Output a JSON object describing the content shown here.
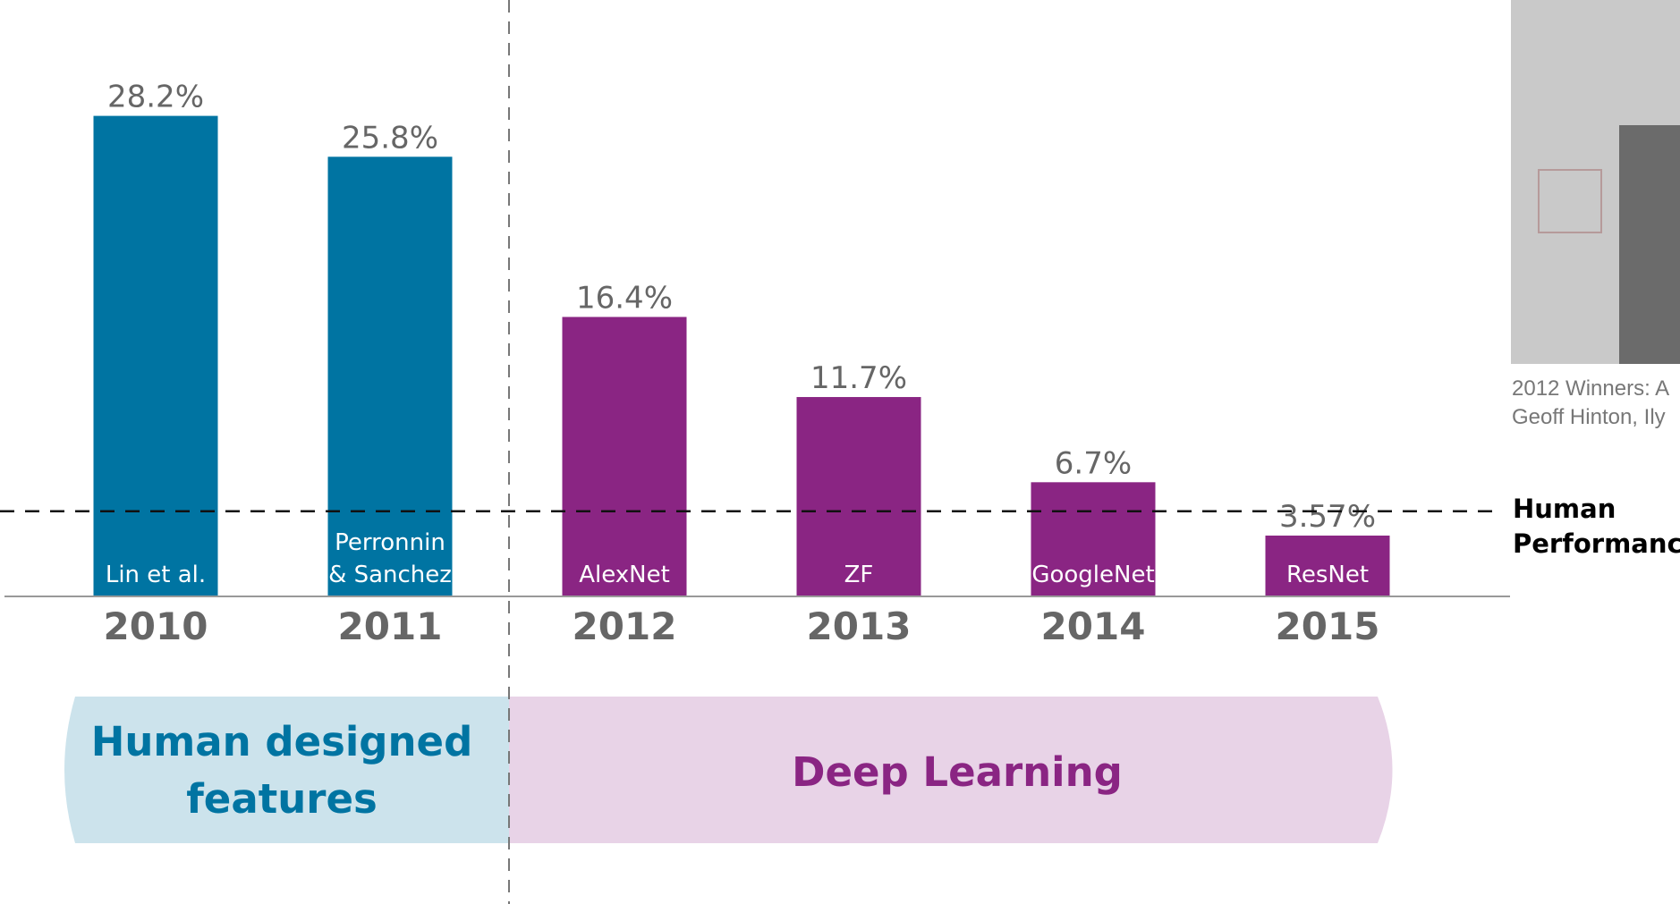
{
  "chart_data": {
    "type": "bar",
    "categories": [
      "2010",
      "2011",
      "2012",
      "2013",
      "2014",
      "2015"
    ],
    "values": [
      28.2,
      25.8,
      16.4,
      11.7,
      6.7,
      3.57
    ],
    "value_labels": [
      "28.2%",
      "25.8%",
      "16.4%",
      "11.7%",
      "6.7%",
      "3.57%"
    ],
    "labels": [
      "Lin et al.",
      "Perronnin & Sanchez",
      "AlexNet",
      "ZF",
      "GoogleNet",
      "ResNet"
    ],
    "colors": [
      "#0074a2",
      "#0074a2",
      "#8a2583",
      "#8a2583",
      "#8a2583",
      "#8a2583"
    ],
    "ylim": [
      0,
      35
    ],
    "reference_line": {
      "value": 5,
      "label": "Human Performance"
    },
    "groups": [
      {
        "label": "Human designed features",
        "color": "#0074a2",
        "background": "#cce3ec"
      },
      {
        "label": "Deep Learning",
        "color": "#8a2583",
        "background": "#e8d3e7"
      }
    ]
  },
  "photo": {
    "caption": [
      "2012 Winners: A",
      "Geoff Hinton, Ily"
    ]
  }
}
